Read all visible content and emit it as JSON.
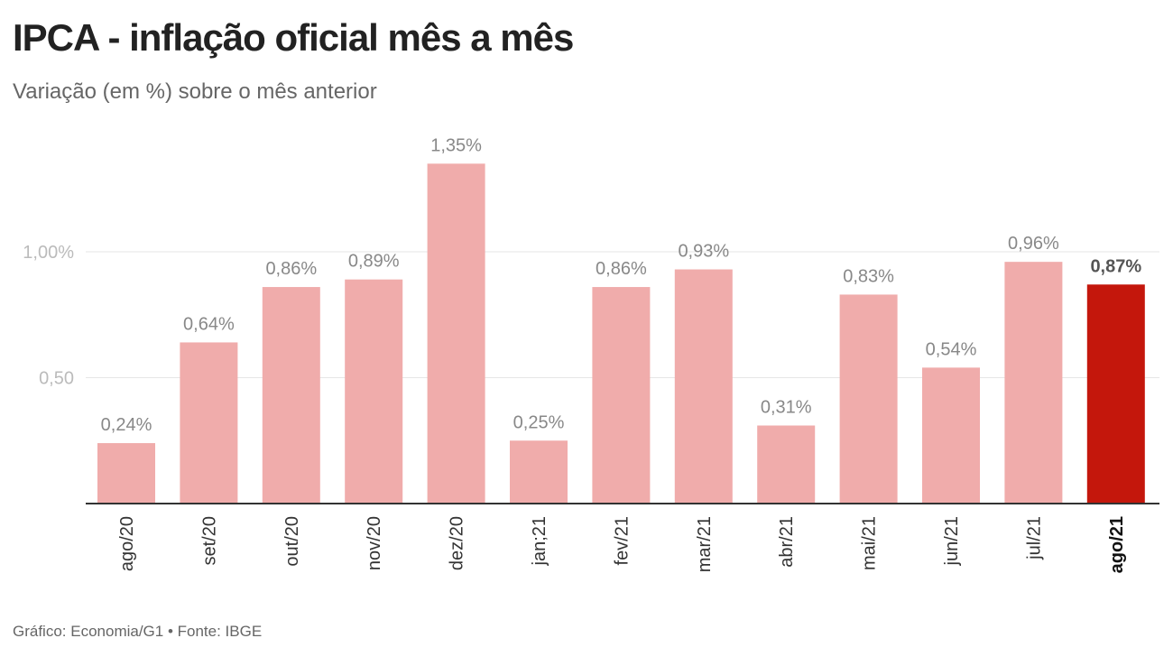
{
  "title": "IPCA - inflação oficial mês a mês",
  "subtitle": "Variação (em %) sobre o mês anterior",
  "source": "Gráfico: Economia/G1 • Fonte: IBGE",
  "colors": {
    "bar": "#f0acab",
    "highlight_bar": "#c4170c",
    "axis": "#333333",
    "gridline": "#e6e6e6",
    "tick_label": "#bbbbbb",
    "value_label": "#888888",
    "highlight_label": "#555555"
  },
  "chart_data": {
    "type": "bar",
    "categories": [
      "ago/20",
      "set/20",
      "out/20",
      "nov/20",
      "dez/20",
      "jan;21",
      "fev/21",
      "mar/21",
      "abr/21",
      "mai/21",
      "jun/21",
      "jul/21",
      "ago/21"
    ],
    "values": [
      0.24,
      0.64,
      0.86,
      0.89,
      1.35,
      0.25,
      0.86,
      0.93,
      0.31,
      0.83,
      0.54,
      0.96,
      0.87
    ],
    "value_labels": [
      "0,24%",
      "0,64%",
      "0,86%",
      "0,89%",
      "1,35%",
      "0,25%",
      "0,86%",
      "0,93%",
      "0,31%",
      "0,83%",
      "0,54%",
      "0,96%",
      "0,87%"
    ],
    "highlight_index": 12,
    "y_ticks": [
      0.5,
      1.0
    ],
    "y_tick_labels": [
      "0,50",
      "1,00%"
    ],
    "ylim": [
      0,
      1.35
    ],
    "title": "IPCA - inflação oficial mês a mês",
    "subtitle": "Variação (em %) sobre o mês anterior",
    "xlabel": "",
    "ylabel": "",
    "grid": true,
    "legend": "none"
  }
}
